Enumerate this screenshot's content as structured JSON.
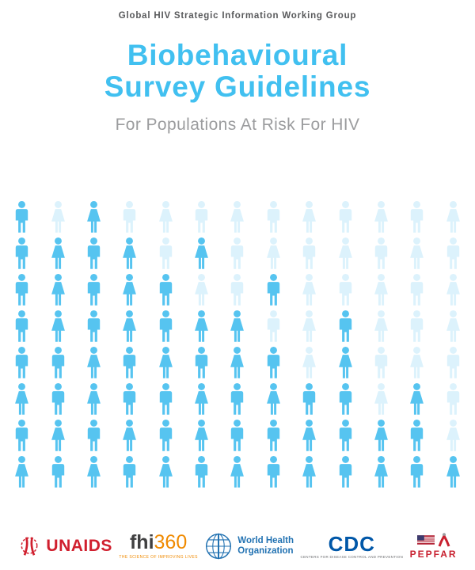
{
  "page": {
    "organization_label": "Global HIV Strategic Information Working Group",
    "title_line1": "Biobehavioural",
    "title_line2": "Survey Guidelines",
    "subtitle": "For Populations At Risk For HIV"
  },
  "colors": {
    "title_blue": "#41c0f0",
    "subtitle_gray": "#9b9c9e",
    "icon_dark": "#56c4f0",
    "icon_light": "#dcf2fc",
    "unaids_red": "#d01f2e",
    "fhi_orange": "#f08a00",
    "who_blue": "#2272b2",
    "cdc_blue": "#0057a8",
    "pepfar_red": "#c8202f"
  },
  "pictogram_grid": {
    "rows": [
      [
        "male-dark",
        "female-light",
        "female-dark",
        "male-light",
        "female-light",
        "male-light",
        "female-light",
        "male-light",
        "female-light",
        "male-light",
        "female-light",
        "male-light",
        "female-light"
      ],
      [
        "male-dark",
        "female-dark",
        "male-dark",
        "female-dark",
        "male-light",
        "female-dark",
        "male-light",
        "female-light",
        "male-light",
        "female-light",
        "male-light",
        "female-light",
        "male-light"
      ],
      [
        "male-dark",
        "female-dark",
        "male-dark",
        "female-dark",
        "male-dark",
        "female-light",
        "male-light",
        "male-dark",
        "female-light",
        "male-light",
        "female-light",
        "male-light",
        "female-light"
      ],
      [
        "male-dark",
        "female-dark",
        "male-dark",
        "female-dark",
        "male-dark",
        "female-dark",
        "female-dark",
        "male-light",
        "female-light",
        "male-dark",
        "female-light",
        "male-light",
        "female-light"
      ],
      [
        "male-dark",
        "male-dark",
        "female-dark",
        "male-dark",
        "female-dark",
        "male-dark",
        "female-dark",
        "male-dark",
        "female-light",
        "female-dark",
        "male-light",
        "female-light",
        "male-light"
      ],
      [
        "female-dark",
        "male-dark",
        "female-dark",
        "male-dark",
        "male-dark",
        "female-dark",
        "male-dark",
        "female-dark",
        "male-dark",
        "male-dark",
        "female-light",
        "female-dark",
        "male-light"
      ],
      [
        "male-dark",
        "female-dark",
        "male-dark",
        "female-dark",
        "male-dark",
        "female-dark",
        "male-dark",
        "male-dark",
        "female-dark",
        "male-dark",
        "female-dark",
        "male-dark",
        "female-light"
      ],
      [
        "female-dark",
        "male-dark",
        "female-dark",
        "male-dark",
        "female-dark",
        "male-dark",
        "female-dark",
        "male-dark",
        "female-dark",
        "male-dark",
        "female-dark",
        "male-dark",
        "female-dark"
      ]
    ]
  },
  "footer_logos": {
    "unaids": {
      "text": "UNAIDS"
    },
    "fhi360": {
      "text_black": "fhi",
      "text_orange": "360",
      "tagline": "THE SCIENCE OF IMPROVING LIVES"
    },
    "who": {
      "line1": "World Health",
      "line2": "Organization"
    },
    "cdc": {
      "text": "CDC",
      "tagline": "CENTERS FOR DISEASE CONTROL AND PREVENTION"
    },
    "pepfar": {
      "text": "PEPFAR"
    }
  }
}
